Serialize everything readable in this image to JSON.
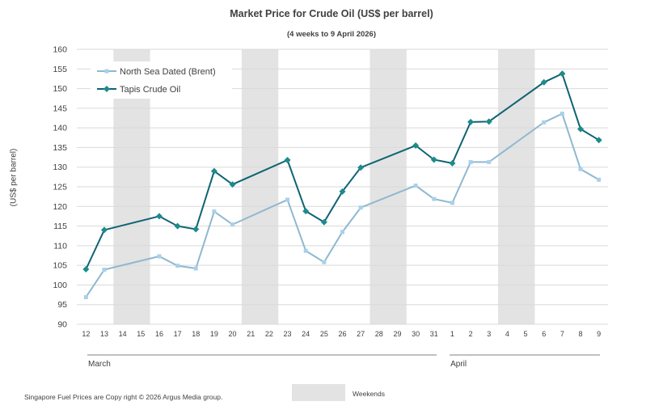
{
  "chart_data": {
    "type": "line",
    "title": "Market Price for Crude  Oil (US$ per barrel)",
    "subtitle": "(4 weeks to 9 April 2026)",
    "ylabel": "(US$ per barrel)",
    "xlabel": "",
    "ylim": [
      90,
      160
    ],
    "yticks": [
      "90",
      "95",
      "100",
      "105",
      "110",
      "115",
      "120",
      "125",
      "130",
      "135",
      "140",
      "145",
      "150",
      "155",
      "160"
    ],
    "x_days": [
      "12",
      "13",
      "14",
      "15",
      "16",
      "17",
      "18",
      "19",
      "20",
      "21",
      "22",
      "23",
      "24",
      "25",
      "26",
      "27",
      "28",
      "29",
      "30",
      "31",
      "1",
      "2",
      "3",
      "4",
      "5",
      "6",
      "7",
      "8",
      "9"
    ],
    "months": [
      "March",
      "April"
    ],
    "weekend_day_pairs": [
      [
        "14",
        "15"
      ],
      [
        "21",
        "22"
      ],
      [
        "28",
        "29"
      ],
      [
        "4",
        "5"
      ]
    ],
    "grid": true,
    "legend_position": "top-left",
    "series": [
      {
        "name": "North Sea Dated (Brent)",
        "color": "#8fb8cf",
        "marker_color": "#a9d0ea",
        "marker": "square",
        "points": [
          [
            "12",
            96.9
          ],
          [
            "13",
            103.9
          ],
          [
            "16",
            107.3
          ],
          [
            "17",
            104.9
          ],
          [
            "18",
            104.2
          ],
          [
            "19",
            118.7
          ],
          [
            "20",
            115.4
          ],
          [
            "23",
            121.7
          ],
          [
            "24",
            108.7
          ],
          [
            "25",
            105.8
          ],
          [
            "26",
            113.5
          ],
          [
            "27",
            119.7
          ],
          [
            "30",
            125.3
          ],
          [
            "31",
            121.9
          ],
          [
            "1",
            120.9
          ],
          [
            "2",
            131.3
          ],
          [
            "3",
            131.3
          ],
          [
            "6",
            141.4
          ],
          [
            "7",
            143.6
          ],
          [
            "8",
            129.5
          ],
          [
            "9",
            126.8
          ]
        ]
      },
      {
        "name": "Tapis Crude Oil",
        "color": "#0e6372",
        "marker_color": "#1d8b8b",
        "marker": "diamond",
        "points": [
          [
            "12",
            104.0
          ],
          [
            "13",
            114.0
          ],
          [
            "16",
            117.5
          ],
          [
            "17",
            115.0
          ],
          [
            "18",
            114.2
          ],
          [
            "19",
            129.0
          ],
          [
            "20",
            125.6
          ],
          [
            "23",
            131.8
          ],
          [
            "24",
            118.8
          ],
          [
            "25",
            116.0
          ],
          [
            "26",
            123.8
          ],
          [
            "27",
            129.9
          ],
          [
            "30",
            135.5
          ],
          [
            "31",
            131.9
          ],
          [
            "1",
            131.0
          ],
          [
            "2",
            141.5
          ],
          [
            "3",
            141.6
          ],
          [
            "6",
            151.6
          ],
          [
            "7",
            153.8
          ],
          [
            "8",
            139.7
          ],
          [
            "9",
            136.9
          ]
        ]
      }
    ]
  },
  "footer": {
    "copyright": "Singapore  Fuel Prices are  Copy right © 2026  Argus Media  group.",
    "weekends_label": "Weekends"
  }
}
